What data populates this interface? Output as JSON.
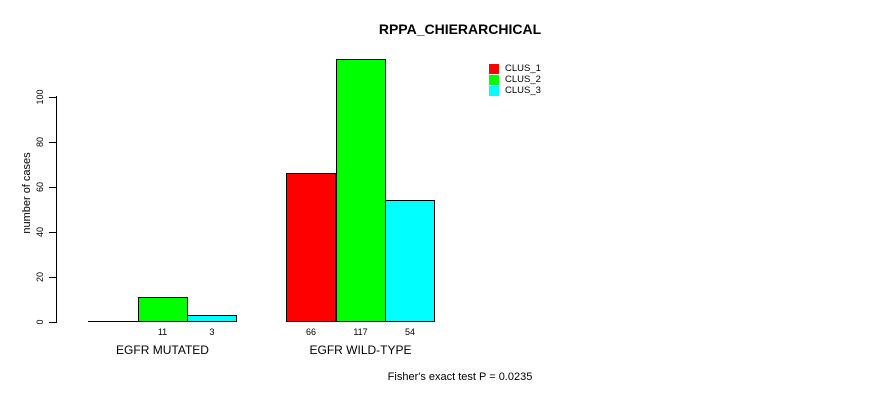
{
  "chart_data": {
    "type": "bar",
    "title": "RPPA_CHIERARCHICAL",
    "ylabel": "number of cases",
    "xlabel": "",
    "categories": [
      "EGFR MUTATED",
      "EGFR WILD-TYPE"
    ],
    "series": [
      {
        "name": "CLUS_1",
        "color": "#ff0000",
        "values": [
          0,
          66
        ]
      },
      {
        "name": "CLUS_2",
        "color": "#00ff00",
        "values": [
          11,
          117
        ]
      },
      {
        "name": "CLUS_3",
        "color": "#00ffff",
        "values": [
          3,
          54
        ]
      }
    ],
    "bar_value_labels_shown": [
      [
        null,
        11,
        3
      ],
      [
        66,
        117,
        54
      ]
    ],
    "yticks": [
      0,
      20,
      40,
      60,
      80,
      100
    ],
    "ylim": [
      0,
      120
    ],
    "grid": false,
    "legend_position": "top-right",
    "annotation": "Fisher's exact test P = 0.0235",
    "axis_color": "#000000",
    "background_color": "#ffffff"
  }
}
